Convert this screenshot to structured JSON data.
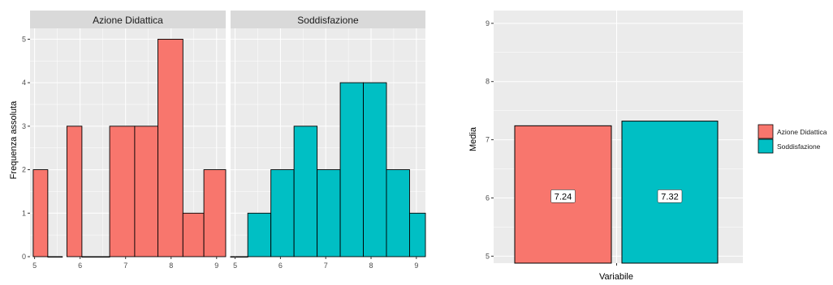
{
  "colors": {
    "azione": "#F8766D",
    "soddisfazione": "#00BFC4",
    "panel_bg": "#EBEBEB",
    "strip_bg": "#D9D9D9",
    "grid": "#FFFFFF",
    "bar_outline": "#000000",
    "text": "#4D4D4D"
  },
  "chart_data": [
    {
      "type": "bar",
      "subtype": "histogram-faceted",
      "ylabel": "Frequenza assoluta",
      "xlim": [
        4.9,
        9.2
      ],
      "ylim": [
        0,
        5.25
      ],
      "x_ticks": [
        "5",
        "6",
        "7",
        "8",
        "9"
      ],
      "y_ticks": [
        "0",
        "1",
        "2",
        "3",
        "4",
        "5"
      ],
      "grid": true,
      "facets": [
        {
          "name": "Azione Didattica",
          "color_key": "azione",
          "bins": [
            {
              "x0": 4.97,
              "x1": 5.29,
              "count": 2
            },
            {
              "x0": 5.29,
              "x1": 5.61,
              "count": 0
            },
            {
              "x0": 5.71,
              "x1": 6.04,
              "count": 3
            },
            {
              "x0": 6.04,
              "x1": 6.65,
              "count": 0
            },
            {
              "x0": 6.65,
              "x1": 7.2,
              "count": 3
            },
            {
              "x0": 7.2,
              "x1": 7.71,
              "count": 3
            },
            {
              "x0": 7.71,
              "x1": 8.26,
              "count": 5
            },
            {
              "x0": 8.26,
              "x1": 8.72,
              "count": 1
            },
            {
              "x0": 8.72,
              "x1": 9.2,
              "count": 2
            }
          ]
        },
        {
          "name": "Soddisfazione",
          "color_key": "soddisfazione",
          "bins": [
            {
              "x0": 4.9,
              "x1": 5.28,
              "count": 0
            },
            {
              "x0": 5.28,
              "x1": 5.79,
              "count": 1
            },
            {
              "x0": 5.79,
              "x1": 6.3,
              "count": 2
            },
            {
              "x0": 6.3,
              "x1": 6.81,
              "count": 3
            },
            {
              "x0": 6.81,
              "x1": 7.32,
              "count": 2
            },
            {
              "x0": 7.32,
              "x1": 7.83,
              "count": 4
            },
            {
              "x0": 7.83,
              "x1": 8.34,
              "count": 4
            },
            {
              "x0": 8.34,
              "x1": 8.85,
              "count": 2
            },
            {
              "x0": 8.85,
              "x1": 9.2,
              "count": 1
            }
          ]
        }
      ]
    },
    {
      "type": "bar",
      "xlabel": "Variabile",
      "ylabel": "Media",
      "ylim": [
        4.88,
        9.22
      ],
      "y_ticks": [
        "5",
        "6",
        "7",
        "8",
        "9"
      ],
      "categories": [
        "Azione Didattica",
        "Soddisfazione"
      ],
      "values": [
        7.24,
        7.32
      ],
      "data_labels": [
        "7.24",
        "7.32"
      ],
      "legend": {
        "position": "right",
        "items": [
          "Azione Didattica",
          "Soddisfazione"
        ]
      },
      "grid": true
    }
  ]
}
